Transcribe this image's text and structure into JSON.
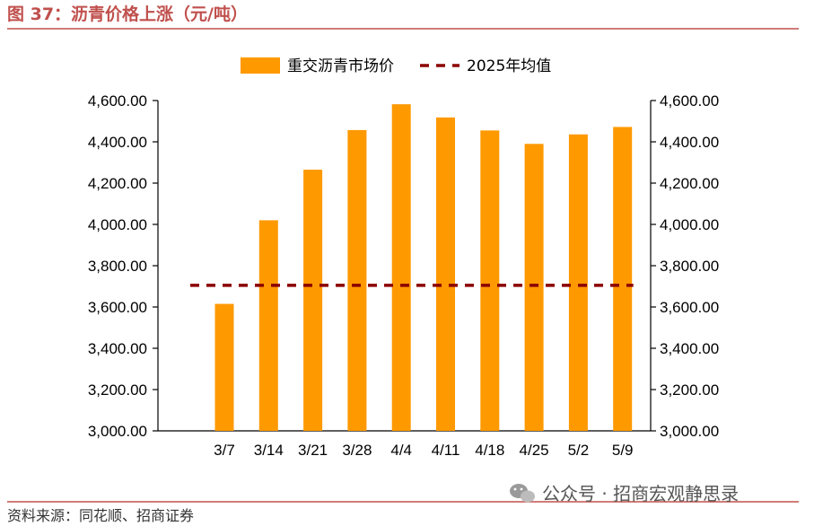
{
  "figure": {
    "title": "图 37：沥青价格上涨（元/吨）",
    "source": "资料来源：同花顺、招商证券",
    "watermark": "公众号 · 招商宏观静思录"
  },
  "colors": {
    "bar": "#ff9900",
    "avg_line": "#8b0000",
    "title": "#c0504d",
    "rule": "#c0504d",
    "axis": "#000000"
  },
  "chart_data": {
    "type": "bar",
    "categories": [
      "3/7",
      "3/14",
      "3/21",
      "3/28",
      "4/4",
      "4/11",
      "4/18",
      "4/25",
      "5/2",
      "5/9"
    ],
    "series": [
      {
        "name": "重交沥青市场价",
        "type": "bar",
        "values": [
          3615,
          4020,
          4265,
          4457,
          4582,
          4518,
          4455,
          4390,
          4436,
          4472
        ]
      },
      {
        "name": "2025年均值",
        "type": "line",
        "style": "dashed",
        "value": 3705
      }
    ],
    "ylim": [
      3000,
      4600
    ],
    "yticks": [
      "3,000.00",
      "3,200.00",
      "3,400.00",
      "3,600.00",
      "3,800.00",
      "4,000.00",
      "4,200.00",
      "4,400.00",
      "4,600.00"
    ],
    "secondary_axis": true,
    "legend_position": "top-center",
    "grid": false
  }
}
